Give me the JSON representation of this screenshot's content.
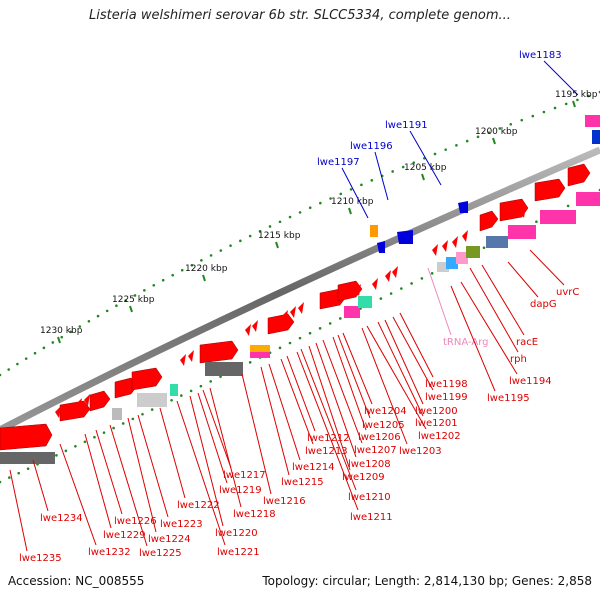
{
  "title": "Listeria welshimeri serovar 6b str. SLCC5334, complete genom...",
  "footer": {
    "accession": "Accession: NC_008555",
    "summary": "Topology: circular; Length: 2,814,130 bp; Genes: 2,858"
  },
  "ticks": [
    "1195 kbp",
    "1200 kbp",
    "1205 kbp",
    "1210 kbp",
    "1215 kbp",
    "1220 kbp",
    "1225 kbp",
    "1230 kbp"
  ],
  "upper_labels": [
    "lwe1183",
    "lwe1191",
    "lwe1196",
    "lwe1197"
  ],
  "lower_labels": [
    "uvrC",
    "dapG",
    "racE",
    "rph",
    "tRNA-Arg",
    "lwe1194",
    "lwe1195",
    "lwe1198",
    "lwe1199",
    "lwe1200",
    "lwe1201",
    "lwe1202",
    "lwe1203",
    "lwe1204",
    "lwe1205",
    "lwe1206",
    "lwe1207",
    "lwe1208",
    "lwe1209",
    "lwe1210",
    "lwe1211",
    "lwe1212",
    "lwe1213",
    "lwe1214",
    "lwe1215",
    "lwe1216",
    "lwe1217",
    "lwe1218",
    "lwe1219",
    "lwe1220",
    "lwe1221",
    "lwe1222",
    "lwe1223",
    "lwe1224",
    "lwe1225",
    "lwe1226",
    "lwe1229",
    "lwe1232",
    "lwe1234",
    "lwe1235"
  ],
  "colors": {
    "forward": "#ff0000",
    "reverse": "#dd0000",
    "upper": "#0000cc",
    "trna": "#ee88bb",
    "backbone": "#888888",
    "tick": "#228822"
  }
}
